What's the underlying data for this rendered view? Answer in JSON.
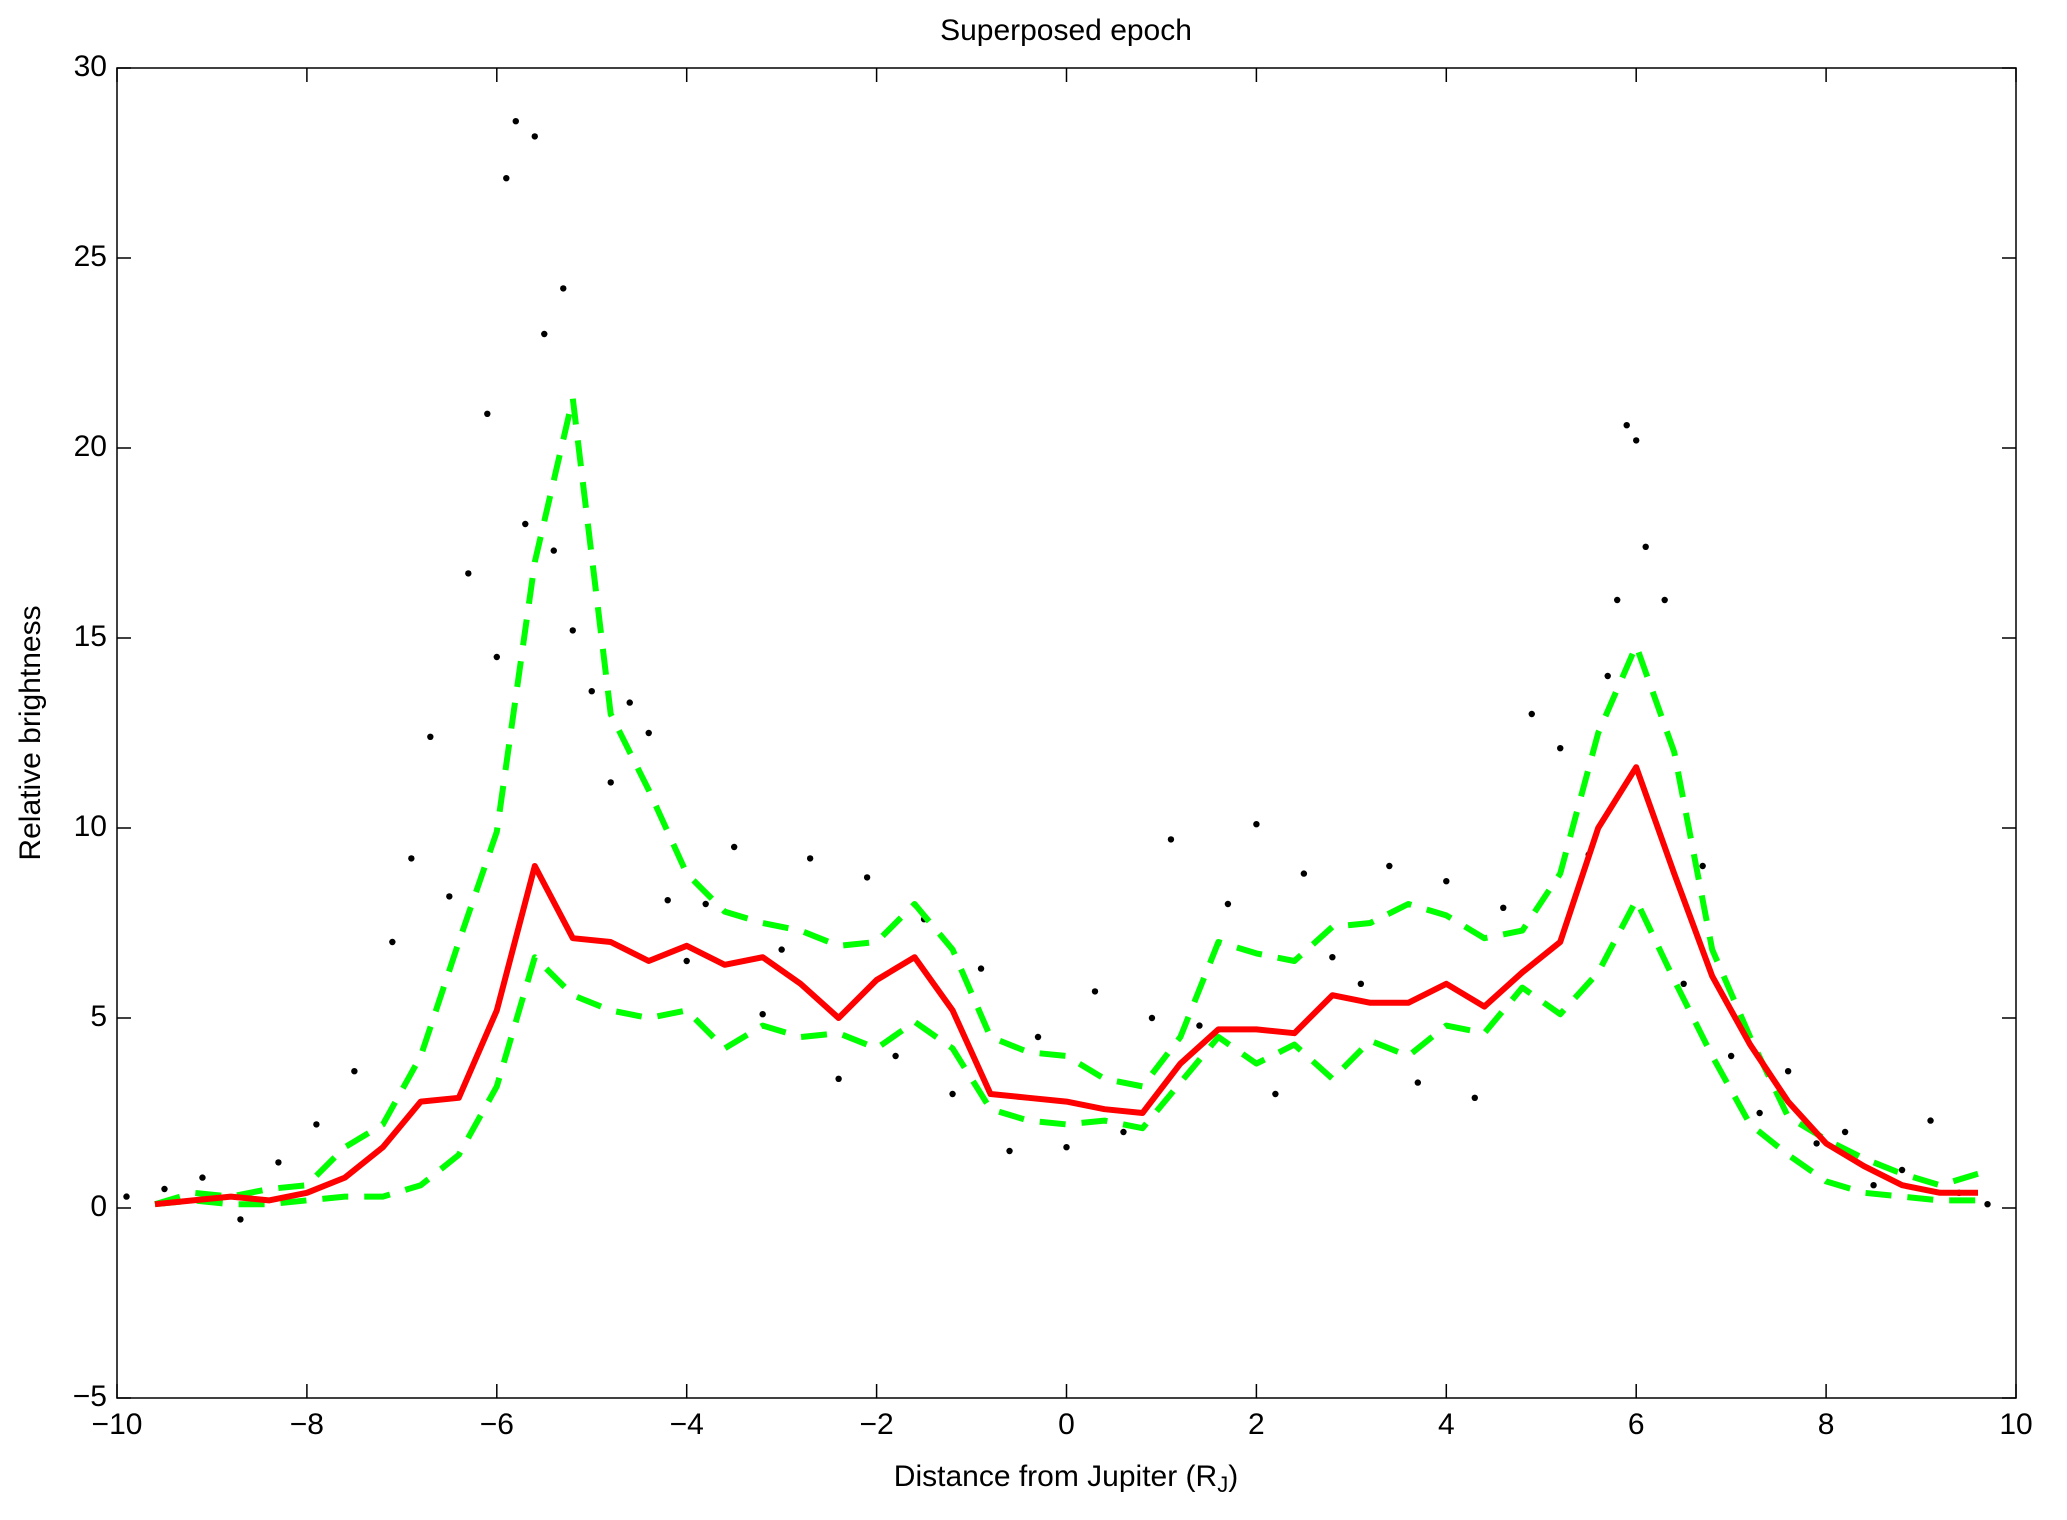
{
  "chart_data": {
    "type": "line",
    "title": "Superposed epoch",
    "xlabel": "Distance from Jupiter (R",
    "xlabel_subscript": "J",
    "xlabel_suffix": ")",
    "ylabel": "Relative brightness",
    "xlim": [
      -10,
      10
    ],
    "ylim": [
      -5,
      30
    ],
    "xticks": [
      {
        "value": -10,
        "label": "−10"
      },
      {
        "value": -8,
        "label": "−8"
      },
      {
        "value": -6,
        "label": "−6"
      },
      {
        "value": -4,
        "label": "−4"
      },
      {
        "value": -2,
        "label": "−2"
      },
      0,
      2,
      4,
      6,
      8,
      10
    ],
    "yticks": [
      {
        "value": -5,
        "label": "−5"
      },
      0,
      5,
      10,
      15,
      20,
      25,
      30
    ],
    "grid": false,
    "series": [
      {
        "style": "dots",
        "color": "#000000",
        "x": [
          -9.9,
          -9.5,
          -9.1,
          -8.7,
          -8.3,
          -7.9,
          -7.5,
          -7.1,
          -6.9,
          -6.7,
          -6.5,
          -6.3,
          -6.1,
          -6.0,
          -5.9,
          -5.8,
          -5.7,
          -5.6,
          -5.5,
          -5.4,
          -5.3,
          -5.2,
          -5.0,
          -4.8,
          -4.6,
          -4.4,
          -4.2,
          -4.0,
          -3.8,
          -3.5,
          -3.2,
          -3.0,
          -2.7,
          -2.4,
          -2.1,
          -1.8,
          -1.5,
          -1.2,
          -0.9,
          -0.6,
          -0.3,
          0.0,
          0.3,
          0.6,
          0.9,
          1.1,
          1.4,
          1.7,
          2.0,
          2.2,
          2.5,
          2.8,
          3.1,
          3.4,
          3.7,
          4.0,
          4.3,
          4.6,
          4.9,
          5.2,
          5.5,
          5.7,
          5.8,
          5.9,
          6.0,
          6.1,
          6.3,
          6.5,
          6.7,
          7.0,
          7.3,
          7.6,
          7.9,
          8.2,
          8.5,
          8.8,
          9.1,
          9.4,
          9.7
        ],
        "values": [
          0.3,
          0.5,
          0.8,
          -0.3,
          1.2,
          2.2,
          3.6,
          7.0,
          9.2,
          12.4,
          8.2,
          16.7,
          20.9,
          14.5,
          27.1,
          28.6,
          18.0,
          28.2,
          23.0,
          17.3,
          24.2,
          15.2,
          13.6,
          11.2,
          13.3,
          12.5,
          8.1,
          6.5,
          8.0,
          9.5,
          5.1,
          6.8,
          9.2,
          3.4,
          8.7,
          4.0,
          7.6,
          3.0,
          6.3,
          1.5,
          4.5,
          1.6,
          5.7,
          2.0,
          5.0,
          9.7,
          4.8,
          8.0,
          10.1,
          3.0,
          8.8,
          6.6,
          5.9,
          9.0,
          3.3,
          8.6,
          2.9,
          7.9,
          13.0,
          12.1,
          9.3,
          14.0,
          16.0,
          20.6,
          20.2,
          17.4,
          16.0,
          5.9,
          9.0,
          4.0,
          2.5,
          3.6,
          1.7,
          2.0,
          0.6,
          1.0,
          2.3,
          0.4,
          0.1
        ]
      },
      {
        "style": "dashed",
        "color": "#00ff00",
        "x": [
          -9.6,
          -9.2,
          -8.8,
          -8.4,
          -8.0,
          -7.6,
          -7.2,
          -6.8,
          -6.4,
          -6.0,
          -5.6,
          -5.2,
          -4.8,
          -4.4,
          -4.0,
          -3.6,
          -3.2,
          -2.8,
          -2.4,
          -2.0,
          -1.6,
          -1.2,
          -0.8,
          -0.4,
          0.0,
          0.4,
          0.8,
          1.2,
          1.6,
          2.0,
          2.4,
          2.8,
          3.2,
          3.6,
          4.0,
          4.4,
          4.8,
          5.2,
          5.6,
          6.0,
          6.4,
          6.8,
          7.2,
          7.6,
          8.0,
          8.4,
          8.8,
          9.2,
          9.6
        ],
        "values": [
          0.1,
          0.4,
          0.3,
          0.5,
          0.6,
          1.6,
          2.2,
          4.0,
          7.0,
          9.9,
          17.0,
          21.3,
          13.0,
          11.0,
          8.8,
          7.8,
          7.5,
          7.3,
          6.9,
          7.0,
          8.0,
          6.8,
          4.5,
          4.1,
          4.0,
          3.4,
          3.2,
          4.5,
          7.0,
          6.7,
          6.5,
          7.4,
          7.5,
          8.0,
          7.7,
          7.1,
          7.3,
          8.8,
          12.5,
          14.8,
          12.0,
          6.8,
          4.5,
          2.4,
          1.8,
          1.3,
          0.9,
          0.6,
          0.9
        ]
      },
      {
        "style": "dashed",
        "color": "#00ff00",
        "x": [
          -9.6,
          -9.2,
          -8.8,
          -8.4,
          -8.0,
          -7.6,
          -7.2,
          -6.8,
          -6.4,
          -6.0,
          -5.6,
          -5.2,
          -4.8,
          -4.4,
          -4.0,
          -3.6,
          -3.2,
          -2.8,
          -2.4,
          -2.0,
          -1.6,
          -1.2,
          -0.8,
          -0.4,
          0.0,
          0.4,
          0.8,
          1.2,
          1.6,
          2.0,
          2.4,
          2.8,
          3.2,
          3.6,
          4.0,
          4.4,
          4.8,
          5.2,
          5.6,
          6.0,
          6.4,
          6.8,
          7.2,
          7.6,
          8.0,
          8.4,
          8.8,
          9.2,
          9.6
        ],
        "values": [
          0.1,
          0.2,
          0.1,
          0.1,
          0.2,
          0.3,
          0.3,
          0.6,
          1.4,
          3.2,
          6.6,
          5.6,
          5.2,
          5.0,
          5.2,
          4.2,
          4.8,
          4.5,
          4.6,
          4.2,
          4.9,
          4.2,
          2.6,
          2.3,
          2.2,
          2.3,
          2.1,
          3.3,
          4.5,
          3.8,
          4.3,
          3.4,
          4.4,
          4.0,
          4.8,
          4.6,
          5.8,
          5.1,
          6.2,
          8.1,
          6.0,
          4.0,
          2.2,
          1.4,
          0.7,
          0.4,
          0.3,
          0.2,
          0.2
        ]
      },
      {
        "style": "solid",
        "color": "#ff0000",
        "x": [
          -9.6,
          -9.2,
          -8.8,
          -8.4,
          -8.0,
          -7.6,
          -7.2,
          -6.8,
          -6.4,
          -6.0,
          -5.6,
          -5.2,
          -4.8,
          -4.4,
          -4.0,
          -3.6,
          -3.2,
          -2.8,
          -2.4,
          -2.0,
          -1.6,
          -1.2,
          -0.8,
          -0.4,
          0.0,
          0.4,
          0.8,
          1.2,
          1.6,
          2.0,
          2.4,
          2.8,
          3.2,
          3.6,
          4.0,
          4.4,
          4.8,
          5.2,
          5.6,
          6.0,
          6.4,
          6.8,
          7.2,
          7.6,
          8.0,
          8.4,
          8.8,
          9.2,
          9.6
        ],
        "values": [
          0.1,
          0.2,
          0.3,
          0.2,
          0.4,
          0.8,
          1.6,
          2.8,
          2.9,
          5.2,
          9.0,
          7.1,
          7.0,
          6.5,
          6.9,
          6.4,
          6.6,
          5.9,
          5.0,
          6.0,
          6.6,
          5.2,
          3.0,
          2.9,
          2.8,
          2.6,
          2.5,
          3.8,
          4.7,
          4.7,
          4.6,
          5.6,
          5.4,
          5.4,
          5.9,
          5.3,
          6.2,
          7.0,
          10.0,
          11.6,
          8.8,
          6.1,
          4.3,
          2.8,
          1.7,
          1.1,
          0.6,
          0.4,
          0.4
        ]
      }
    ]
  }
}
